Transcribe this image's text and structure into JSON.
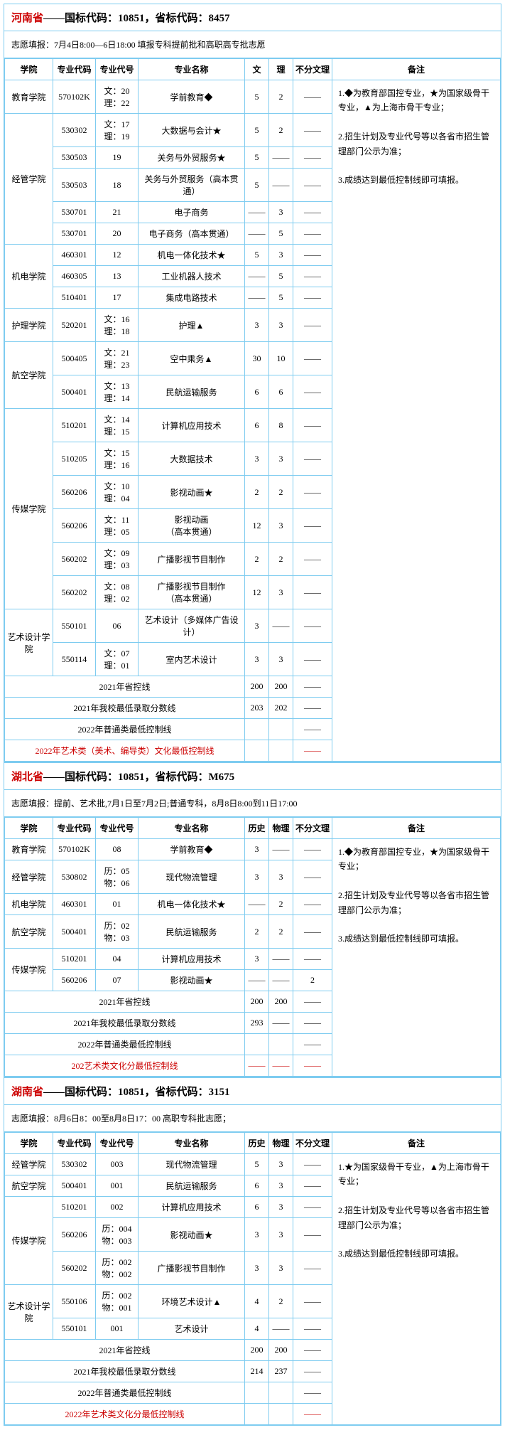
{
  "provinces": [
    {
      "name": "河南省",
      "codeText": "——国标代码：10851，省标代码：8457",
      "fillNote": "志愿填报：7月4日8:00—6日18:00 填报专科提前批和高职高专批志愿",
      "headers": [
        "学院",
        "专业代码",
        "专业代号",
        "专业名称",
        "文",
        "理",
        "不分文理",
        "备注"
      ],
      "notes": "1.◆为教育部国控专业，★为国家级骨干专业，▲为上海市骨干专业；\n\n2.招生计划及专业代号等以各省市招生管理部门公示为准；\n\n3.成绩达到最低控制线即可填报。",
      "groups": [
        {
          "college": "教育学院",
          "rows": [
            {
              "code": "570102K",
              "sub": "文：20\n理：22",
              "major": "学前教育◆",
              "c1": "5",
              "c2": "2",
              "c3": "——"
            }
          ]
        },
        {
          "college": "经管学院",
          "rows": [
            {
              "code": "530302",
              "sub": "文：17\n理：19",
              "major": "大数据与会计★",
              "c1": "5",
              "c2": "2",
              "c3": "——"
            },
            {
              "code": "530503",
              "sub": "19",
              "major": "关务与外贸服务★",
              "c1": "5",
              "c2": "——",
              "c3": "——"
            },
            {
              "code": "530503",
              "sub": "18",
              "major": "关务与外贸服务（高本贯通）",
              "c1": "5",
              "c2": "——",
              "c3": "——"
            },
            {
              "code": "530701",
              "sub": "21",
              "major": "电子商务",
              "c1": "——",
              "c2": "3",
              "c3": "——"
            },
            {
              "code": "530701",
              "sub": "20",
              "major": "电子商务（高本贯通）",
              "c1": "——",
              "c2": "5",
              "c3": "——"
            }
          ]
        },
        {
          "college": "机电学院",
          "rows": [
            {
              "code": "460301",
              "sub": "12",
              "major": "机电一体化技术★",
              "c1": "5",
              "c2": "3",
              "c3": "——"
            },
            {
              "code": "460305",
              "sub": "13",
              "major": "工业机器人技术",
              "c1": "——",
              "c2": "5",
              "c3": "——"
            },
            {
              "code": "510401",
              "sub": "17",
              "major": "集成电路技术",
              "c1": "——",
              "c2": "5",
              "c3": "——"
            }
          ]
        },
        {
          "college": "护理学院",
          "rows": [
            {
              "code": "520201",
              "sub": "文：16\n理：18",
              "major": "护理▲",
              "c1": "3",
              "c2": "3",
              "c3": "——"
            }
          ]
        },
        {
          "college": "航空学院",
          "rows": [
            {
              "code": "500405",
              "sub": "文：21\n理：23",
              "major": "空中乘务▲",
              "c1": "30",
              "c2": "10",
              "c3": "——"
            },
            {
              "code": "500401",
              "sub": "文：13\n理：14",
              "major": "民航运输服务",
              "c1": "6",
              "c2": "6",
              "c3": "——"
            }
          ]
        },
        {
          "college": "传媒学院",
          "rows": [
            {
              "code": "510201",
              "sub": "文：14\n理：15",
              "major": "计算机应用技术",
              "c1": "6",
              "c2": "8",
              "c3": "——"
            },
            {
              "code": "510205",
              "sub": "文：15\n理：16",
              "major": "大数据技术",
              "c1": "3",
              "c2": "3",
              "c3": "——"
            },
            {
              "code": "560206",
              "sub": "文：10\n理：04",
              "major": "影视动画★",
              "c1": "2",
              "c2": "2",
              "c3": "——"
            },
            {
              "code": "560206",
              "sub": "文：11\n理：05",
              "major": "影视动画\n（高本贯通）",
              "c1": "12",
              "c2": "3",
              "c3": "——"
            },
            {
              "code": "560202",
              "sub": "文：09\n理：03",
              "major": "广播影视节目制作",
              "c1": "2",
              "c2": "2",
              "c3": "——"
            },
            {
              "code": "560202",
              "sub": "文：08\n理：02",
              "major": "广播影视节目制作\n（高本贯通）",
              "c1": "12",
              "c2": "3",
              "c3": "——"
            }
          ]
        },
        {
          "college": "艺术设计学院",
          "rows": [
            {
              "code": "550101",
              "sub": "06",
              "major": "艺术设计（多媒体广告设计）",
              "c1": "3",
              "c2": "——",
              "c3": "——"
            },
            {
              "code": "550114",
              "sub": "文：07\n理：01",
              "major": "室内艺术设计",
              "c1": "3",
              "c2": "3",
              "c3": "——"
            }
          ]
        }
      ],
      "summary": [
        {
          "label": "2021年省控线",
          "c1": "200",
          "c2": "200",
          "c3": "——",
          "red": false
        },
        {
          "label": "2021年我校最低录取分数线",
          "c1": "203",
          "c2": "202",
          "c3": "——",
          "red": false
        },
        {
          "label": "2022年普通类最低控制线",
          "c1": "",
          "c2": "",
          "c3": "——",
          "red": false
        },
        {
          "label": "2022年艺术类（美术、编导类）文化最低控制线",
          "c1": "",
          "c2": "",
          "c3": "——",
          "red": true
        }
      ]
    },
    {
      "name": "湖北省",
      "codeText": "——国标代码：10851，省标代码：M675",
      "fillNote": "志愿填报：提前、艺术批,7月1日至7月2日;普通专科，8月8日8:00到11日17:00",
      "headers": [
        "学院",
        "专业代码",
        "专业代号",
        "专业名称",
        "历史",
        "物理",
        "不分文理",
        "备注"
      ],
      "notes": "1.◆为教育部国控专业，★为国家级骨干专业；\n\n2.招生计划及专业代号等以各省市招生管理部门公示为准；\n\n3.成绩达到最低控制线即可填报。",
      "groups": [
        {
          "college": "教育学院",
          "rows": [
            {
              "code": "570102K",
              "sub": "08",
              "major": "学前教育◆",
              "c1": "3",
              "c2": "——",
              "c3": "——"
            }
          ]
        },
        {
          "college": "经管学院",
          "rows": [
            {
              "code": "530802",
              "sub": "历：05\n物：06",
              "major": "现代物流管理",
              "c1": "3",
              "c2": "3",
              "c3": "——"
            }
          ]
        },
        {
          "college": "机电学院",
          "rows": [
            {
              "code": "460301",
              "sub": "01",
              "major": "机电一体化技术★",
              "c1": "——",
              "c2": "2",
              "c3": "——"
            }
          ]
        },
        {
          "college": "航空学院",
          "rows": [
            {
              "code": "500401",
              "sub": "历：02\n物：03",
              "major": "民航运输服务",
              "c1": "2",
              "c2": "2",
              "c3": "——"
            }
          ]
        },
        {
          "college": "传媒学院",
          "rows": [
            {
              "code": "510201",
              "sub": "04",
              "major": "计算机应用技术",
              "c1": "3",
              "c2": "——",
              "c3": "——"
            },
            {
              "code": "560206",
              "sub": "07",
              "major": "影视动画★",
              "c1": "——",
              "c2": "——",
              "c3": "2"
            }
          ]
        }
      ],
      "summary": [
        {
          "label": "2021年省控线",
          "c1": "200",
          "c2": "200",
          "c3": "——",
          "red": false
        },
        {
          "label": "2021年我校最低录取分数线",
          "c1": "293",
          "c2": "——",
          "c3": "——",
          "red": false
        },
        {
          "label": "2022年普通类最低控制线",
          "c1": "",
          "c2": "",
          "c3": "——",
          "red": false
        },
        {
          "label": "202艺术类文化分最低控制线",
          "c1": "——",
          "c2": "——",
          "c3": "——",
          "red": true
        }
      ]
    },
    {
      "name": "湖南省",
      "codeText": "——国标代码：10851，省标代码：3151",
      "fillNote": "志愿填报：8月6日8：00至8月8日17：00 高职专科批志愿；",
      "headers": [
        "学院",
        "专业代码",
        "专业代号",
        "专业名称",
        "历史",
        "物理",
        "不分文理",
        "备注"
      ],
      "notes": "1.★为国家级骨干专业，▲为上海市骨干专业；\n\n2.招生计划及专业代号等以各省市招生管理部门公示为准；\n\n3.成绩达到最低控制线即可填报。",
      "groups": [
        {
          "college": "经管学院",
          "rows": [
            {
              "code": "530302",
              "sub": "003",
              "major": "现代物流管理",
              "c1": "5",
              "c2": "3",
              "c3": "——"
            }
          ]
        },
        {
          "college": "航空学院",
          "rows": [
            {
              "code": "500401",
              "sub": "001",
              "major": "民航运输服务",
              "c1": "6",
              "c2": "3",
              "c3": "——"
            }
          ]
        },
        {
          "college": "传媒学院",
          "rows": [
            {
              "code": "510201",
              "sub": "002",
              "major": "计算机应用技术",
              "c1": "6",
              "c2": "3",
              "c3": "——"
            },
            {
              "code": "560206",
              "sub": "历：004\n物：003",
              "major": "影视动画★",
              "c1": "3",
              "c2": "3",
              "c3": "——"
            },
            {
              "code": "560202",
              "sub": "历：002\n物：002",
              "major": "广播影视节目制作",
              "c1": "3",
              "c2": "3",
              "c3": "——"
            }
          ]
        },
        {
          "college": "艺术设计学院",
          "rows": [
            {
              "code": "550106",
              "sub": "历：002\n物：001",
              "major": "环境艺术设计▲",
              "c1": "4",
              "c2": "2",
              "c3": "——"
            },
            {
              "code": "550101",
              "sub": "001",
              "major": "艺术设计",
              "c1": "4",
              "c2": "——",
              "c3": "——"
            }
          ]
        }
      ],
      "summary": [
        {
          "label": "2021年省控线",
          "c1": "200",
          "c2": "200",
          "c3": "——",
          "red": false
        },
        {
          "label": "2021年我校最低录取分数线",
          "c1": "214",
          "c2": "237",
          "c3": "——",
          "red": false
        },
        {
          "label": "2022年普通类最低控制线",
          "c1": "",
          "c2": "",
          "c3": "——",
          "red": false
        },
        {
          "label": "2022年艺术类文化分最低控制线",
          "c1": "",
          "c2": "",
          "c3": "——",
          "red": true
        }
      ]
    }
  ]
}
